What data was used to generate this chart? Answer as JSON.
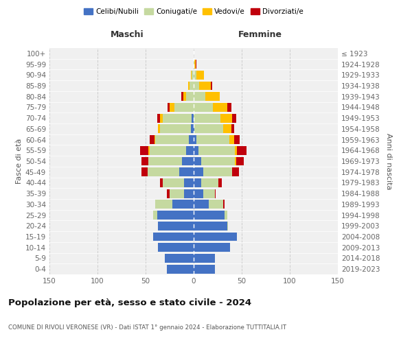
{
  "age_groups": [
    "0-4",
    "5-9",
    "10-14",
    "15-19",
    "20-24",
    "25-29",
    "30-34",
    "35-39",
    "40-44",
    "45-49",
    "50-54",
    "55-59",
    "60-64",
    "65-69",
    "70-74",
    "75-79",
    "80-84",
    "85-89",
    "90-94",
    "95-99",
    "100+"
  ],
  "birth_years": [
    "2019-2023",
    "2014-2018",
    "2009-2013",
    "2004-2008",
    "1999-2003",
    "1994-1998",
    "1989-1993",
    "1984-1988",
    "1979-1983",
    "1974-1978",
    "1969-1973",
    "1964-1968",
    "1959-1963",
    "1954-1958",
    "1949-1953",
    "1944-1948",
    "1939-1943",
    "1934-1938",
    "1929-1933",
    "1924-1928",
    "≤ 1923"
  ],
  "male_celibi": [
    28,
    30,
    37,
    42,
    37,
    38,
    22,
    10,
    10,
    15,
    12,
    8,
    5,
    3,
    2,
    0,
    0,
    0,
    0,
    0,
    0
  ],
  "male_coniugati": [
    0,
    0,
    0,
    0,
    0,
    4,
    18,
    15,
    22,
    33,
    35,
    38,
    35,
    32,
    30,
    20,
    8,
    4,
    2,
    0,
    0
  ],
  "male_vedovi": [
    0,
    0,
    0,
    0,
    0,
    0,
    0,
    0,
    0,
    0,
    0,
    1,
    1,
    2,
    3,
    5,
    3,
    2,
    1,
    0,
    0
  ],
  "male_divorziati": [
    0,
    0,
    0,
    0,
    0,
    0,
    0,
    3,
    3,
    6,
    7,
    9,
    5,
    0,
    3,
    2,
    2,
    0,
    0,
    0,
    0
  ],
  "female_celibi": [
    22,
    22,
    38,
    45,
    35,
    32,
    16,
    10,
    8,
    10,
    8,
    5,
    3,
    1,
    0,
    0,
    0,
    0,
    0,
    0,
    0
  ],
  "female_coniugati": [
    0,
    0,
    0,
    0,
    1,
    3,
    15,
    12,
    18,
    30,
    35,
    38,
    34,
    30,
    28,
    20,
    12,
    6,
    3,
    1,
    0
  ],
  "female_vedovi": [
    0,
    0,
    0,
    0,
    0,
    0,
    0,
    0,
    0,
    0,
    1,
    2,
    5,
    8,
    12,
    15,
    15,
    12,
    8,
    1,
    0
  ],
  "female_divorziati": [
    0,
    0,
    0,
    0,
    0,
    0,
    1,
    1,
    3,
    7,
    8,
    10,
    6,
    3,
    4,
    4,
    0,
    1,
    0,
    1,
    0
  ],
  "colors": {
    "celibi": "#4472c4",
    "coniugati": "#c5d9a0",
    "vedovi": "#ffc000",
    "divorziati": "#c0000c"
  },
  "title": "Popolazione per età, sesso e stato civile - 2024",
  "subtitle": "COMUNE DI RIVOLI VERONESE (VR) - Dati ISTAT 1° gennaio 2024 - Elaborazione TUTTITALIA.IT",
  "xlabel_left": "Maschi",
  "xlabel_right": "Femmine",
  "ylabel_left": "Fasce di età",
  "ylabel_right": "Anni di nascita",
  "xlim": 150,
  "background_color": "#ffffff",
  "plot_bg": "#f0f0f0"
}
